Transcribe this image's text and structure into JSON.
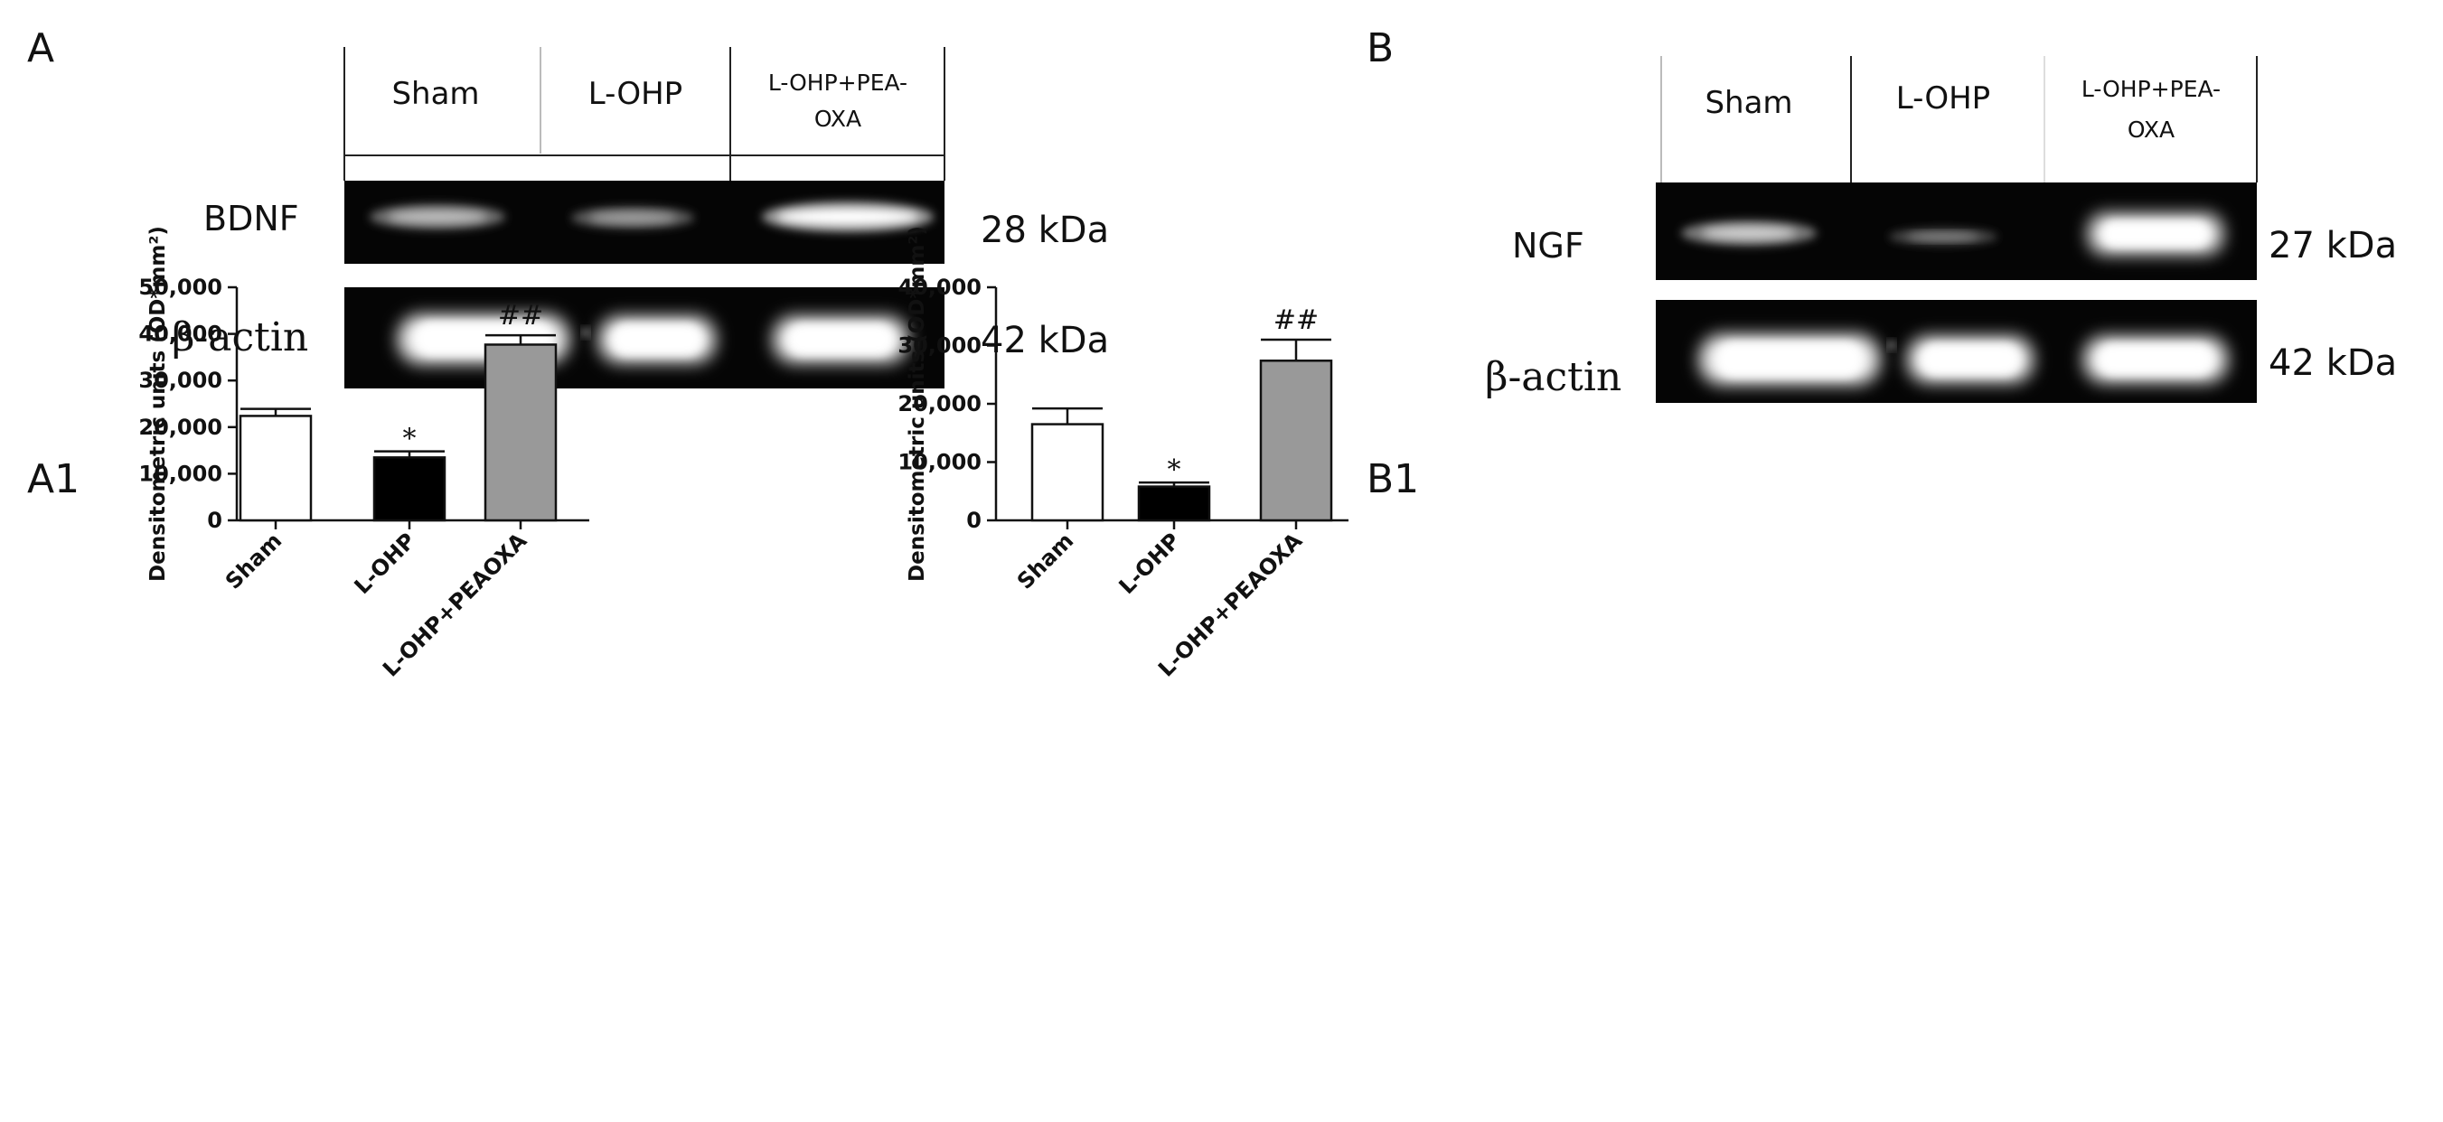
{
  "panel_labels": {
    "a": "A",
    "b": "B",
    "a1": "A1",
    "b1": "B1"
  },
  "blot_a": {
    "lanes": [
      "Sham",
      "L-OHP"
    ],
    "lane3_lines": [
      "L-OHP+PEA-",
      "OXA"
    ],
    "rows": [
      {
        "label": "BDNF",
        "weight": "28 kDa"
      },
      {
        "label": "β-actin",
        "weight": "42 kDa"
      }
    ]
  },
  "blot_b": {
    "lanes": [
      "Sham",
      "L-OHP"
    ],
    "lane3_lines": [
      "L-OHP+PEA-",
      "OXA"
    ],
    "rows": [
      {
        "label": "NGF",
        "weight": "27 kDa"
      },
      {
        "label": "β-actin",
        "weight": "42 kDa"
      }
    ]
  },
  "chart_data": [
    {
      "type": "bar",
      "categories": [
        "Sham",
        "L-OHP",
        "L-OHP+PEAOXA"
      ],
      "values": [
        22400,
        13500,
        37700
      ],
      "errors": [
        1500,
        1300,
        2000
      ],
      "colors": [
        "#ffffff",
        "#000000",
        "#999999"
      ],
      "annotations": [
        "",
        "*",
        "##"
      ],
      "ylabel": "Densitometric units (OD*mm²)",
      "ylim": [
        0,
        50000
      ],
      "yticks": [
        0,
        10000,
        20000,
        30000,
        40000,
        50000
      ],
      "ytick_labels": [
        "0",
        "10,000",
        "20,000",
        "30,000",
        "40,000",
        "50,000"
      ]
    },
    {
      "type": "bar",
      "categories": [
        "Sham",
        "L-OHP",
        "L-OHP+PEAOXA"
      ],
      "values": [
        16500,
        5800,
        27400
      ],
      "errors": [
        2700,
        700,
        3600
      ],
      "colors": [
        "#ffffff",
        "#000000",
        "#999999"
      ],
      "annotations": [
        "",
        "*",
        "##"
      ],
      "ylabel": "Densitometric units (OD*mm²)",
      "ylim": [
        0,
        40000
      ],
      "yticks": [
        0,
        10000,
        20000,
        30000,
        40000
      ],
      "ytick_labels": [
        "0",
        "10,000",
        "20,000",
        "30,000",
        "40,000"
      ]
    }
  ]
}
